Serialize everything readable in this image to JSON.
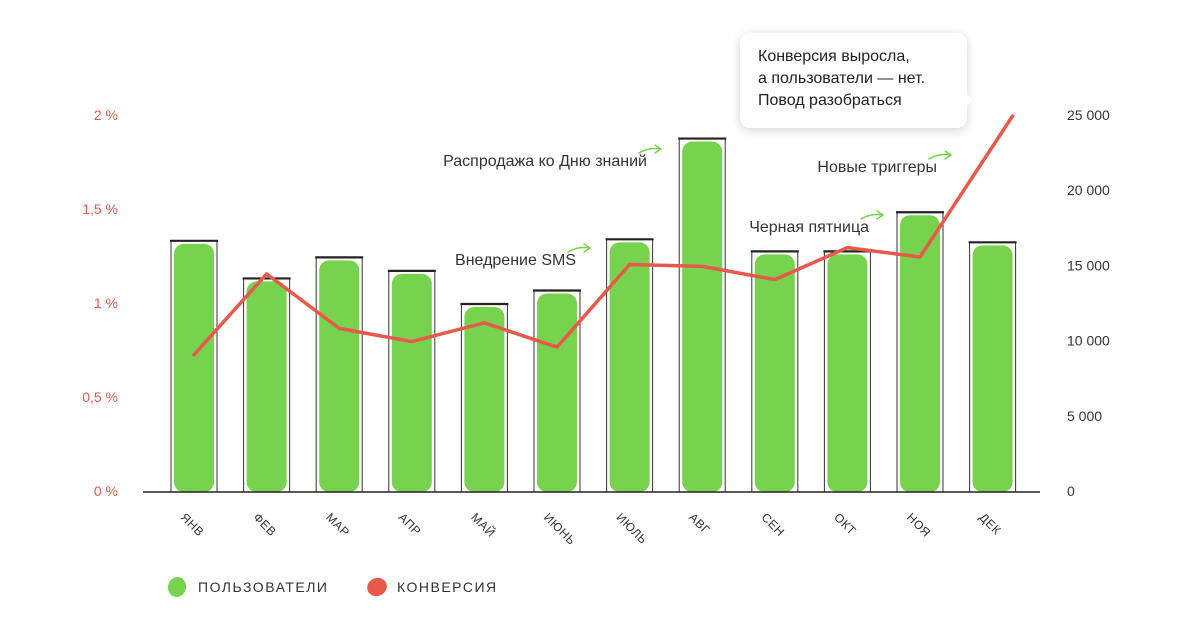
{
  "chart_data": {
    "type": "bar+line",
    "categories": [
      "ЯНВ",
      "ФЕВ",
      "МАР",
      "АПР",
      "МАЙ",
      "ИЮНЬ",
      "ИЮЛЬ",
      "АВГ",
      "СЕН",
      "ОКТ",
      "НОЯ",
      "ДЕК"
    ],
    "series": [
      {
        "name": "пользователи",
        "type": "bar",
        "axis": "right",
        "color": "#77d34e",
        "values": [
          16700,
          14200,
          15600,
          14700,
          12500,
          13400,
          16800,
          23500,
          16000,
          16000,
          18600,
          16600
        ]
      },
      {
        "name": "конверсия",
        "type": "line",
        "axis": "left",
        "color": "#e8594c",
        "values": [
          0.73,
          1.16,
          0.87,
          0.8,
          0.9,
          0.77,
          1.21,
          1.2,
          1.13,
          1.3,
          1.25,
          2.0
        ]
      }
    ],
    "y_left": {
      "ticks": [
        "0 %",
        "0,5 %",
        "1 %",
        "1,5 %",
        "2 %"
      ],
      "range": [
        0,
        2
      ]
    },
    "y_right": {
      "ticks": [
        "0",
        "5 000",
        "10 000",
        "15 000",
        "20 000",
        "25 000"
      ],
      "range": [
        0,
        25000
      ]
    },
    "annotations": [
      {
        "text": "Внедрение SMS",
        "month_index": 6
      },
      {
        "text": "Распродажа ко Дню знаний",
        "month_index": 7
      },
      {
        "text": "Черная пятница",
        "month_index": 10
      },
      {
        "text": "Новые триггеры",
        "month_index": 11
      }
    ],
    "legend": [
      {
        "label": "ПОЛЬЗОВАТЕЛИ",
        "color": "#77d34e"
      },
      {
        "label": "КОНВЕРСИЯ",
        "color": "#e8594c"
      }
    ],
    "legend_position": "bottom-left"
  },
  "callout": {
    "lines": [
      "Конверсия выросла,",
      "а пользователи — нет.",
      "Повод разобраться"
    ]
  }
}
